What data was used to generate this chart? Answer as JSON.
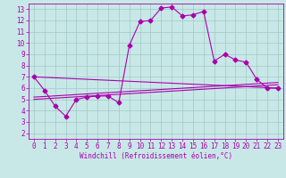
{
  "title": "",
  "xlabel": "Windchill (Refroidissement éolien,°C)",
  "xlim": [
    -0.5,
    23.5
  ],
  "ylim": [
    1.5,
    13.5
  ],
  "xticks": [
    0,
    1,
    2,
    3,
    4,
    5,
    6,
    7,
    8,
    9,
    10,
    11,
    12,
    13,
    14,
    15,
    16,
    17,
    18,
    19,
    20,
    21,
    22,
    23
  ],
  "yticks": [
    2,
    3,
    4,
    5,
    6,
    7,
    8,
    9,
    10,
    11,
    12,
    13
  ],
  "background_color": "#c8e8e8",
  "grid_color": "#a0c8c8",
  "line_color": "#aa00aa",
  "line1_x": [
    0,
    1,
    2,
    3,
    4,
    5,
    6,
    7,
    8,
    9,
    10,
    11,
    12,
    13,
    14,
    15,
    16,
    17,
    18,
    19,
    20,
    21,
    22,
    23
  ],
  "line1_y": [
    7.0,
    5.8,
    4.4,
    3.5,
    5.0,
    5.2,
    5.3,
    5.3,
    4.7,
    9.8,
    11.9,
    12.0,
    13.1,
    13.2,
    12.4,
    12.5,
    12.8,
    8.4,
    9.0,
    8.5,
    8.3,
    6.8,
    6.0,
    6.0
  ],
  "line2_x": [
    0,
    23
  ],
  "line2_y": [
    7.0,
    6.0
  ],
  "line3_x": [
    0,
    23
  ],
  "line3_y": [
    5.0,
    6.3
  ],
  "line4_x": [
    0,
    23
  ],
  "line4_y": [
    5.2,
    6.5
  ],
  "tick_fontsize": 5.5,
  "xlabel_fontsize": 5.5
}
